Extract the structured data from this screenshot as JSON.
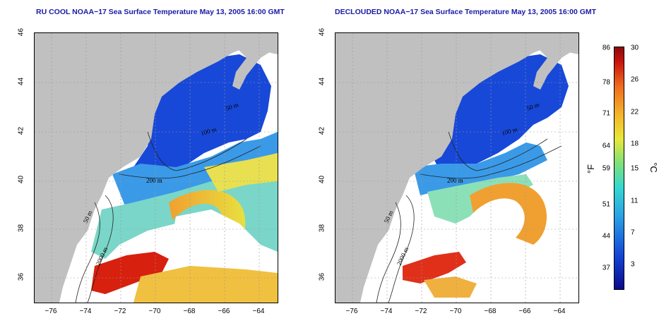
{
  "left_panel": {
    "title": "RU COOL NOAA−17 Sea Surface Temperature May 13, 2005 16:00 GMT",
    "contours": [
      "50 m",
      "100 m",
      "200 m",
      "2000 m",
      "50 m"
    ]
  },
  "right_panel": {
    "title": "DECLOUDED NOAA−17 Sea Surface Temperature May 13, 2005 16:00 GMT",
    "contours": [
      "50 m",
      "100 m",
      "200 m",
      "2000 m",
      "50 m"
    ]
  },
  "axes": {
    "x_ticks": [
      "−76",
      "−74",
      "−72",
      "−70",
      "−68",
      "−66",
      "−64"
    ],
    "y_ticks": [
      "46",
      "44",
      "42",
      "40",
      "38",
      "36"
    ]
  },
  "colorbar": {
    "fahrenheit_label": "°F",
    "celsius_label": "°C",
    "fahrenheit_ticks": [
      "86",
      "78",
      "71",
      "64",
      "59",
      "51",
      "44",
      "37"
    ],
    "celsius_ticks": [
      "30",
      "26",
      "22",
      "18",
      "15",
      "11",
      "7",
      "3"
    ]
  },
  "colors": {
    "land": "#c0c0c0",
    "title": "#1a1aa8",
    "cold": "#1446d8",
    "warm": "#d8200e"
  }
}
